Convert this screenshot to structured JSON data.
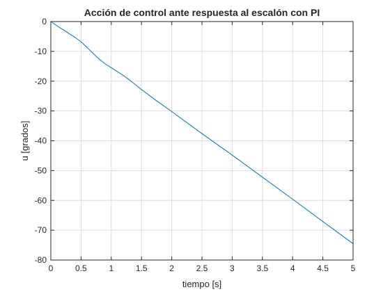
{
  "chart_data": {
    "type": "line",
    "title": "Acción de control ante respuesta al escalón con PI",
    "xlabel": "tiempo [s]",
    "ylabel": "u [grados]",
    "xlim": [
      0,
      5
    ],
    "ylim": [
      -80,
      0
    ],
    "xticks": [
      0,
      0.5,
      1,
      1.5,
      2,
      2.5,
      3,
      3.5,
      4,
      4.5,
      5
    ],
    "xtick_labels": [
      "0",
      "0.5",
      "1",
      "1.5",
      "2",
      "2.5",
      "3",
      "3.5",
      "4",
      "4.5",
      "5"
    ],
    "yticks": [
      0,
      -10,
      -20,
      -30,
      -40,
      -50,
      -60,
      -70,
      -80
    ],
    "ytick_labels": [
      "0",
      "-10",
      "-20",
      "-30",
      "-40",
      "-50",
      "-60",
      "-70",
      "-80"
    ],
    "grid": true,
    "series": [
      {
        "color": "#0072bd",
        "x": [
          0,
          0.1,
          0.2,
          0.3,
          0.4,
          0.5,
          0.6,
          0.7,
          0.8,
          0.9,
          1.0,
          1.1,
          1.2,
          1.3,
          1.4,
          1.5,
          1.75,
          2.0,
          2.5,
          3.0,
          3.5,
          4.0,
          4.5,
          5.0
        ],
        "y": [
          0,
          -1.4,
          -2.7,
          -4.0,
          -5.3,
          -6.8,
          -8.7,
          -10.7,
          -12.6,
          -14.2,
          -15.5,
          -16.8,
          -18.1,
          -19.6,
          -21.2,
          -22.8,
          -26.6,
          -30.2,
          -37.6,
          -44.8,
          -52.2,
          -59.6,
          -67.1,
          -74.5
        ]
      }
    ]
  }
}
